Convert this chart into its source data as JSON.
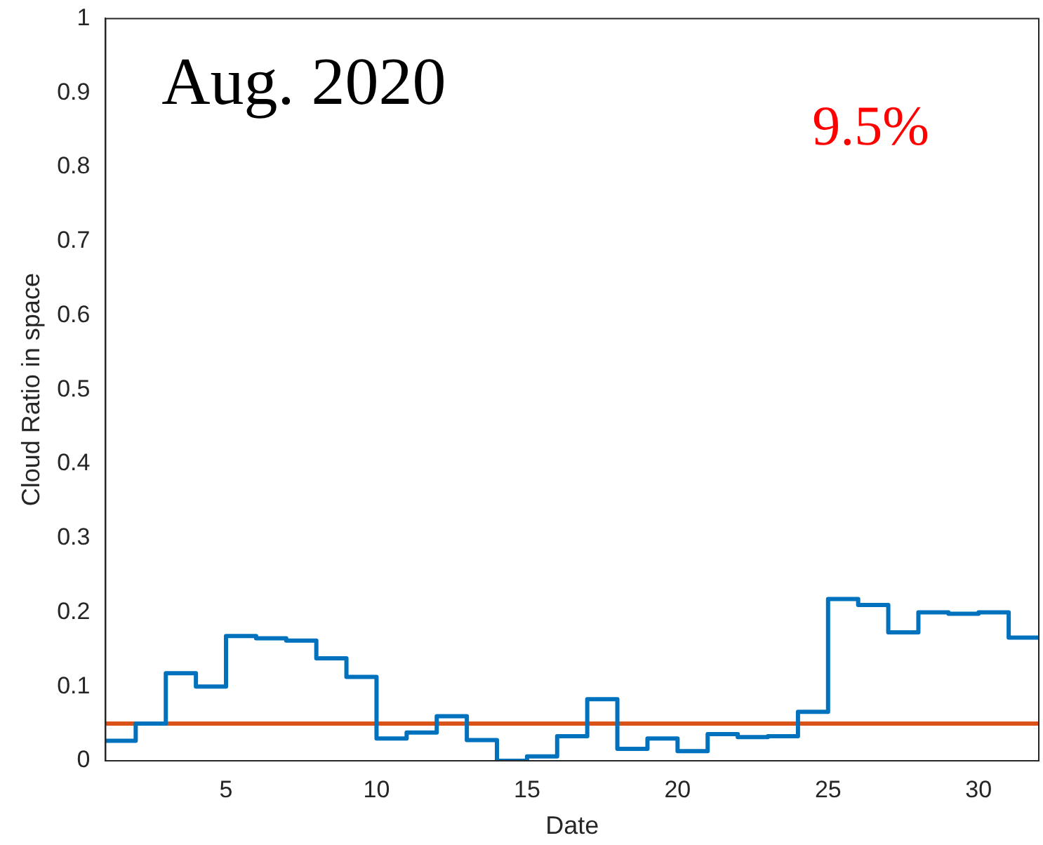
{
  "chart_data": {
    "type": "step",
    "xlabel": "Date",
    "ylabel": "Cloud Ratio in space",
    "x": [
      1,
      2,
      3,
      4,
      5,
      6,
      7,
      8,
      9,
      10,
      11,
      12,
      13,
      14,
      15,
      16,
      17,
      18,
      19,
      20,
      21,
      22,
      23,
      24,
      25,
      26,
      27,
      28,
      29,
      30,
      31,
      32
    ],
    "series": [
      {
        "color": "#0072bd",
        "values": [
          0.027,
          0.05,
          0.118,
          0.1,
          0.168,
          0.165,
          0.162,
          0.138,
          0.113,
          0.03,
          0.038,
          0.06,
          0.028,
          0.0,
          0.006,
          0.033,
          0.083,
          0.016,
          0.03,
          0.013,
          0.036,
          0.032,
          0.033,
          0.066,
          0.218,
          0.21,
          0.173,
          0.2,
          0.198,
          0.2,
          0.166,
          0.166
        ]
      }
    ],
    "ref_lines": [
      {
        "axis": "y",
        "value": 0.05,
        "color": "#d95319"
      }
    ],
    "annotations": [
      "Aug. 2020",
      "9.5%"
    ],
    "xlim": [
      1,
      32
    ],
    "xticks": [
      5,
      10,
      15,
      20,
      25,
      30
    ],
    "ylim": [
      0,
      1
    ],
    "yticks": [
      0,
      0.1,
      0.2,
      0.3,
      0.4,
      0.5,
      0.6,
      0.7,
      0.8,
      0.9,
      1
    ],
    "grid": false,
    "legend": false
  }
}
